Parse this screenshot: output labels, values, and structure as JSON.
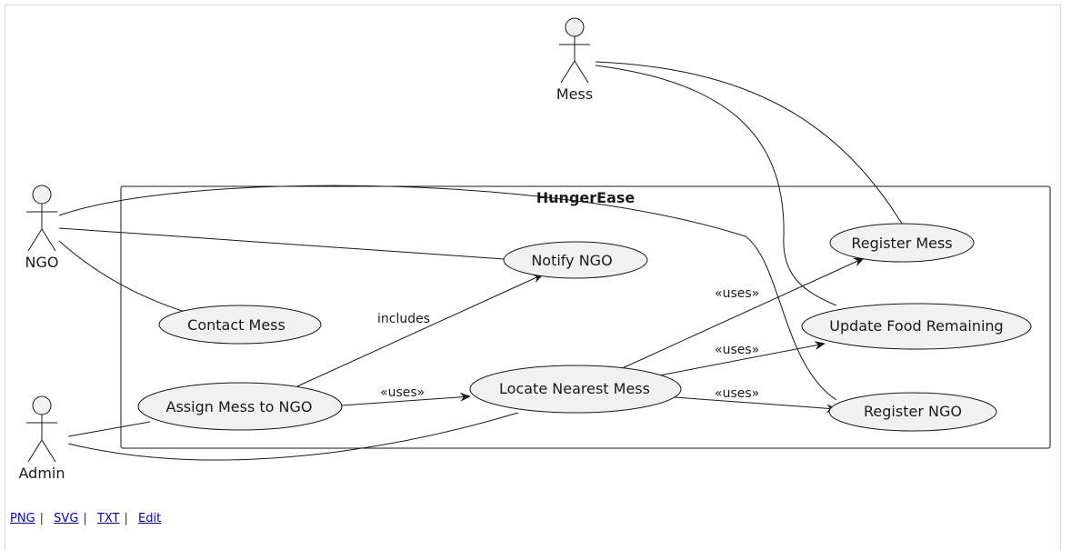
{
  "system": {
    "title": "HungerEase"
  },
  "actors": {
    "mess": "Mess",
    "ngo": "NGO",
    "admin": "Admin"
  },
  "usecases": {
    "register_mess": "Register Mess",
    "notify_ngo": "Notify NGO",
    "update_food": "Update Food Remaining",
    "contact_mess": "Contact Mess",
    "locate_mess": "Locate Nearest Mess",
    "assign_mess": "Assign Mess to NGO",
    "register_ngo": "Register NGO"
  },
  "edge_labels": {
    "includes": "includes",
    "uses_assign_locate": "«uses»",
    "uses_locate_register_mess": "«uses»",
    "uses_locate_update": "«uses»",
    "uses_locate_register_ngo": "«uses»"
  },
  "footer": {
    "png": "PNG",
    "svg": "SVG",
    "txt": "TXT",
    "edit": "Edit"
  },
  "colors": {
    "ellipse_fill": "#f1f1f1",
    "stroke": "#181818",
    "link": "#0000cc"
  }
}
